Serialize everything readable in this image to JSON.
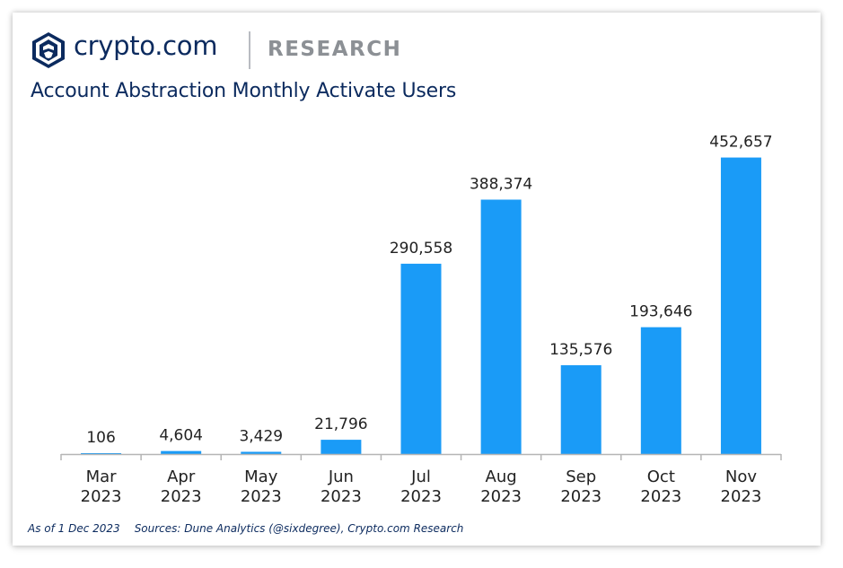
{
  "branding": {
    "logo_icon": "crypto-com-lion-shield-icon",
    "name": "crypto.com",
    "sub": "RESEARCH",
    "color": "#0b2a5e"
  },
  "footer": {
    "as_of": "As of 1 Dec 2023",
    "sources": "Sources: Dune Analytics (@sixdegree), Crypto.com Research"
  },
  "chart_data": {
    "type": "bar",
    "title": "Account Abstraction Monthly Activate Users",
    "xlabel": "",
    "ylabel": "",
    "categories": [
      [
        "Mar",
        "2023"
      ],
      [
        "Apr",
        "2023"
      ],
      [
        "May",
        "2023"
      ],
      [
        "Jun",
        "2023"
      ],
      [
        "Jul",
        "2023"
      ],
      [
        "Aug",
        "2023"
      ],
      [
        "Sep",
        "2023"
      ],
      [
        "Oct",
        "2023"
      ],
      [
        "Nov",
        "2023"
      ]
    ],
    "values": [
      106,
      4604,
      3429,
      21796,
      290558,
      388374,
      135576,
      193646,
      452657
    ],
    "value_labels": [
      "106",
      "4,604",
      "3,429",
      "21,796",
      "290,558",
      "388,374",
      "135,576",
      "193,646",
      "452,657"
    ],
    "ylim": [
      0,
      500000
    ],
    "bar_color": "#1a9bf7",
    "grid": false,
    "legend": "none"
  }
}
